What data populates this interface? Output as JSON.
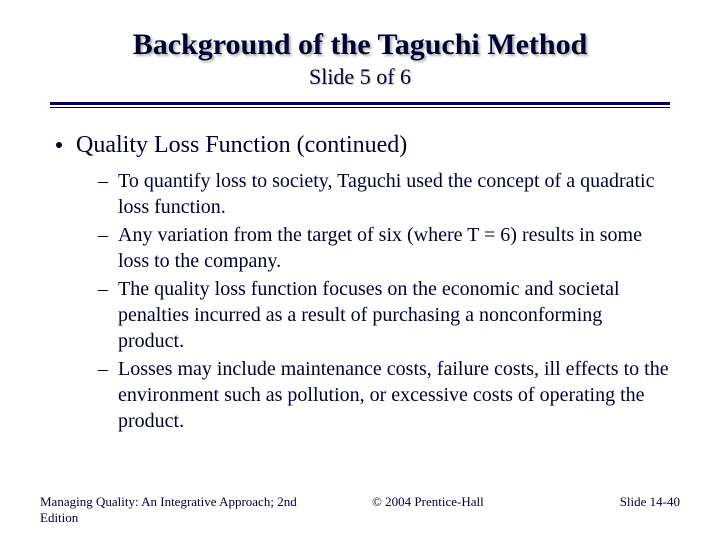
{
  "title": "Background of the Taguchi Method",
  "subtitle": "Slide 5 of 6",
  "bullet": "Quality Loss Function (continued)",
  "subs": [
    "To quantify loss to society, Taguchi used the concept of a quadratic loss function.",
    "Any variation from the target of six (where T = 6) results in some loss to the company.",
    "The quality loss function focuses on the economic and societal penalties incurred as a result of purchasing a nonconforming product.",
    "Losses may include maintenance costs, failure costs, ill effects to the environment such as pollution, or excessive costs of operating the product."
  ],
  "footer": {
    "left": "Managing Quality: An Integrative Approach; 2nd Edition",
    "center": "© 2004 Prentice-Hall",
    "right": "Slide  14-40"
  },
  "colors": {
    "text": "#000033",
    "divider": "#000066",
    "background": "#ffffff"
  }
}
